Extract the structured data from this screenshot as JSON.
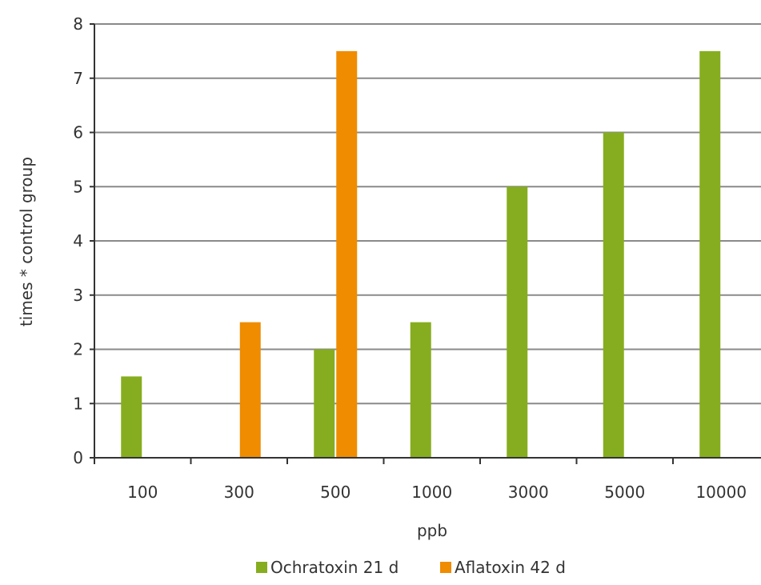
{
  "chart_data": {
    "type": "bar",
    "categories": [
      "100",
      "300",
      "500",
      "1000",
      "3000",
      "5000",
      "10000"
    ],
    "series": [
      {
        "name": "Ochratoxin 21 d",
        "color": "#86ad1f",
        "values": [
          1.5,
          null,
          2,
          2.5,
          5,
          6,
          7.5
        ]
      },
      {
        "name": "Aflatoxin 42 d",
        "color": "#ef8c00",
        "values": [
          null,
          2.5,
          7.5,
          null,
          null,
          null,
          null
        ]
      }
    ],
    "xlabel": "ppb",
    "ylabel": "times * control group",
    "ylim": [
      0,
      8
    ],
    "yticks": [
      0,
      1,
      2,
      3,
      4,
      5,
      6,
      7,
      8
    ],
    "grid": true,
    "legend_position": "bottom"
  }
}
